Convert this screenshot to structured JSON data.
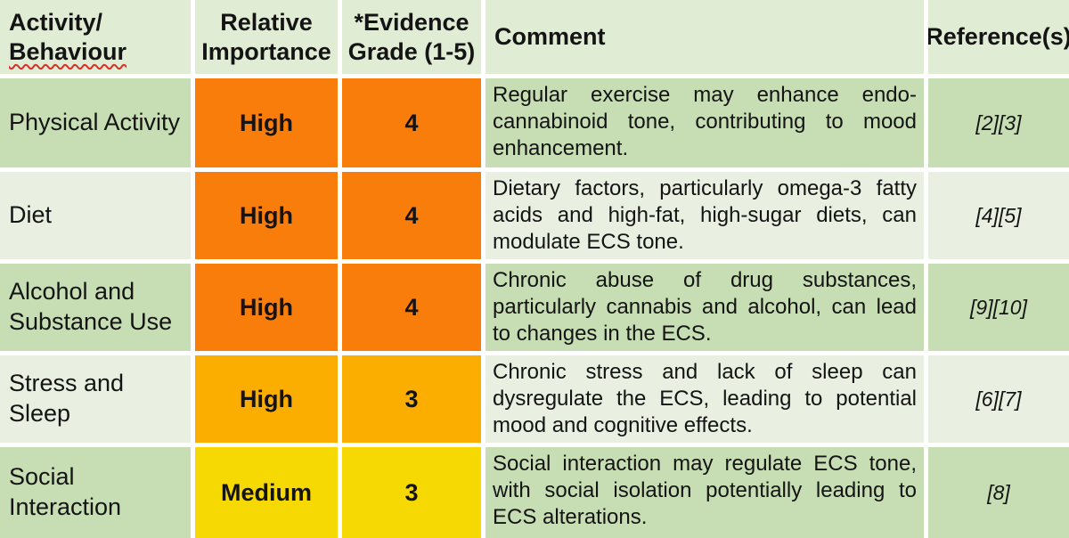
{
  "colors": {
    "header_bg": "#E1ECD5",
    "row_green_dark": "#C7DDB3",
    "row_green_light": "#E9F0E1",
    "orange": "#F97D0A",
    "amber": "#FBAD00",
    "yellow": "#F6D802",
    "grid_line": "#FFFFFF",
    "squiggle_red": "#D93025",
    "text": "#141414"
  },
  "header": {
    "activity_line1": "Activity/",
    "activity_line2": "Behaviour",
    "importance": "Relative\nImportance",
    "evidence": "*Evidence\nGrade (1-5)",
    "comment": "Comment",
    "references": "Reference(s)"
  },
  "rows": [
    {
      "activity": "Physical Activity",
      "importance": "High",
      "grade": "4",
      "comment": "Regular exercise may enhance endo-cannabinoid tone, contributing to mood enhancement.",
      "references": "[2][3]",
      "row_color": "#C7DDB3",
      "level_color": "#F97D0A"
    },
    {
      "activity": "Diet",
      "importance": "High",
      "grade": "4",
      "comment": "Dietary factors, particularly omega-3 fatty acids and high-fat, high-sugar diets, can modulate ECS tone.",
      "references": "[4][5]",
      "row_color": "#E9F0E1",
      "level_color": "#F97D0A"
    },
    {
      "activity": "Alcohol and Substance Use",
      "importance": "High",
      "grade": "4",
      "comment": "Chronic abuse of drug substances, particularly cannabis and alcohol, can lead to changes in the ECS.",
      "references": "[9][10]",
      "row_color": "#C7DDB3",
      "level_color": "#F97D0A"
    },
    {
      "activity": "Stress and Sleep",
      "importance": "High",
      "grade": "3",
      "comment": "Chronic stress and lack of sleep can dysregulate the ECS, leading to potential mood and cognitive effects.",
      "references": "[6][7]",
      "row_color": "#E9F0E1",
      "level_color": "#FBAD00"
    },
    {
      "activity": "Social Interaction",
      "importance": "Medium",
      "grade": "3",
      "comment": "Social interaction may regulate ECS tone, with social isolation potentially leading to ECS alterations.",
      "references": "[8]",
      "row_color": "#C7DDB3",
      "level_color": "#F6D802"
    }
  ]
}
